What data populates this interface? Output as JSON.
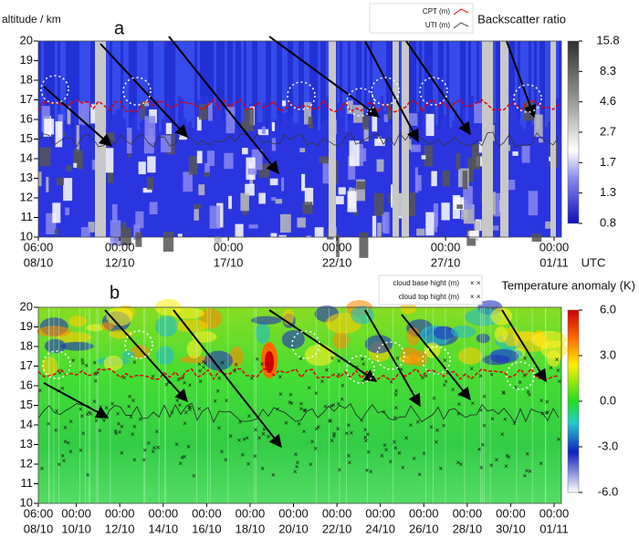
{
  "chart_data": [
    {
      "type": "heatmap",
      "panel_label": "a",
      "y_label": "altitude / km",
      "ylim": [
        10,
        20
      ],
      "yticks": [
        10,
        11,
        12,
        13,
        14,
        15,
        16,
        17,
        18,
        19,
        20
      ],
      "xtick_labels": [
        [
          "06:00",
          "08/10"
        ],
        [
          "00:00",
          "12/10"
        ],
        [
          "00:00",
          "17/10"
        ],
        [
          "00:00",
          "22/10"
        ],
        [
          "00:00",
          "27/10"
        ],
        [
          "00:00",
          "01/11"
        ]
      ],
      "x_unit": "UTC",
      "legend": [
        "CPT (m)",
        "UTI (m)"
      ],
      "colorbar": {
        "label": "Backscatter ratio",
        "ticks": [
          15.8,
          8.3,
          4.6,
          2.7,
          1.7,
          1.3,
          0.8
        ]
      }
    },
    {
      "type": "heatmap",
      "panel_label": "b",
      "ylim": [
        10,
        20
      ],
      "yticks": [
        10,
        11,
        12,
        13,
        14,
        15,
        16,
        17,
        18,
        19,
        20
      ],
      "xtick_labels": [
        [
          "06:00",
          "08/10"
        ],
        [
          "00:00",
          "10/10"
        ],
        [
          "00:00",
          "12/10"
        ],
        [
          "00:00",
          "14/10"
        ],
        [
          "00:00",
          "16/10"
        ],
        [
          "00:00",
          "18/10"
        ],
        [
          "00:00",
          "20/10"
        ],
        [
          "00:00",
          "22/10"
        ],
        [
          "00:00",
          "24/10"
        ],
        [
          "00:00",
          "26/10"
        ],
        [
          "00:00",
          "28/10"
        ],
        [
          "00:00",
          "30/10"
        ],
        [
          "00:00",
          "01/11"
        ]
      ],
      "legend": [
        "cloud base hight (m)",
        "cloud top hight (m)"
      ],
      "colorbar": {
        "label": "Temperature anomaly (K)",
        "ticks": [
          {
            "value": 6.0,
            "label": "6.0"
          },
          {
            "value": 3.0,
            "label": "3.0"
          },
          {
            "value": 0.0,
            "label": "0.0"
          },
          {
            "value": -3.0,
            "label": "-3.0"
          },
          {
            "value": -6.0,
            "label": "-6.0"
          }
        ]
      }
    }
  ]
}
